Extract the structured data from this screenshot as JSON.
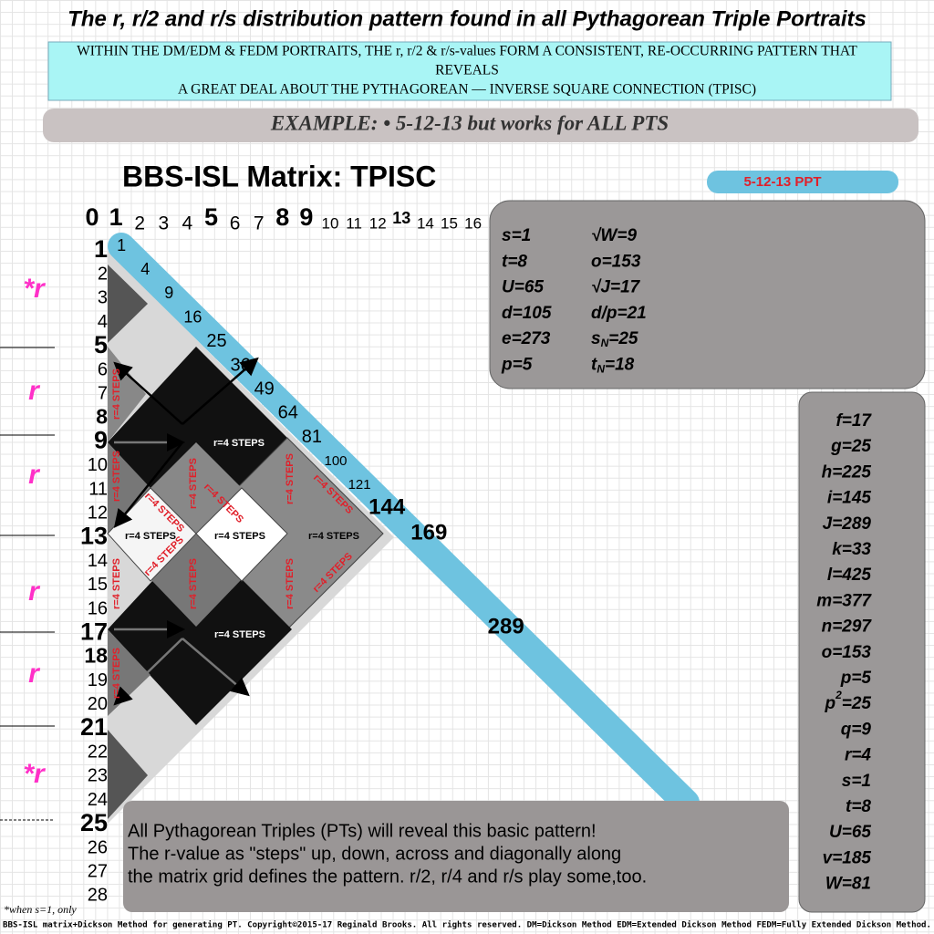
{
  "header": {
    "title": "The r, r/2 and r/s distribution pattern found in all Pythagorean Triple Portraits",
    "banner_lines": [
      "WITHIN THE DM/EDM & FEDM PORTRAITS, THE r, r/2 & r/s-values FORM A CONSISTENT, RE-OCCURRING PATTERN THAT",
      "REVEALS",
      "A GREAT DEAL ABOUT THE PYTHAGOREAN — INVERSE SQUARE CONNECTION (TPISC)"
    ],
    "example": "EXAMPLE:  • 5-12-13 but works for ALL PTS"
  },
  "matrix": {
    "title": "BBS-ISL Matrix: TPISC",
    "badge": "5-12-13 PPT",
    "columns": [
      "0",
      "1",
      "2",
      "3",
      "4",
      "5",
      "6",
      "7",
      "8",
      "9",
      "10",
      "11",
      "12",
      "13",
      "14",
      "15",
      "16"
    ],
    "rows": [
      "1",
      "2",
      "3",
      "4",
      "5",
      "6",
      "7",
      "8",
      "9",
      "10",
      "11",
      "12",
      "13",
      "14",
      "15",
      "16",
      "17",
      "18",
      "19",
      "20",
      "21",
      "22",
      "23",
      "24",
      "25",
      "26",
      "27",
      "28"
    ],
    "squares": [
      "1",
      "4",
      "9",
      "16",
      "25",
      "36",
      "49",
      "64",
      "81",
      "100",
      "121",
      "144",
      "169",
      "289"
    ],
    "step_labels": [
      "r=4 STEPS",
      "r=4 STEPS",
      "r=4 STEPS",
      "r=4 STEPS",
      "r=4 STEPS",
      "r=4 STEPS",
      "r=4 STEPS",
      "r=4 STEPS",
      "r=4 STEPS",
      "r=4 STEPS",
      "r=4 STEPS",
      "r=4 STEPS",
      "r=4 STEPS",
      "r=4 STEPS",
      "r=4 STEPS",
      "r=4 STEPS",
      "r=4 STEPS",
      "r=4 STEPS"
    ],
    "r_markers": [
      "*r",
      "r",
      "r",
      "r",
      "r",
      "*r"
    ]
  },
  "left_box": {
    "col1": [
      "s=1",
      "t=8",
      "U=65",
      "d=105",
      "e=273",
      "p=5"
    ],
    "col2": [
      "√W=9",
      "o=153",
      "√J=17",
      "d/p=21",
      [
        "s",
        "N",
        "=25"
      ],
      [
        "t",
        "N",
        "=18"
      ]
    ]
  },
  "right_box": [
    "f=17",
    "g=25",
    "h=225",
    "i=145",
    "J=289",
    "k=33",
    "l=425",
    "m=377",
    "n=297",
    "o=153",
    "p=5",
    [
      "p",
      "2",
      "=25"
    ],
    "q=9",
    "r=4",
    "s=1",
    "t=8",
    "U=65",
    "v=185",
    "W=81"
  ],
  "note": [
    "All Pythagorean Triples (PTs) will reveal this basic pattern!",
    "The r-value as \"steps\" up, down, across and diagonally along",
    "the matrix grid defines the pattern. r/2, r/4 and r/s play some,too."
  ],
  "footnote": "*when s=1, only",
  "copyright": "BBS-ISL matrix+Dickson Method for generating PT. Copyright©2015-17 Reginald Brooks. All rights reserved. DM=Dickson Method EDM=Extended Dickson Method FEDM=Fully Extended Dickson Method."
}
